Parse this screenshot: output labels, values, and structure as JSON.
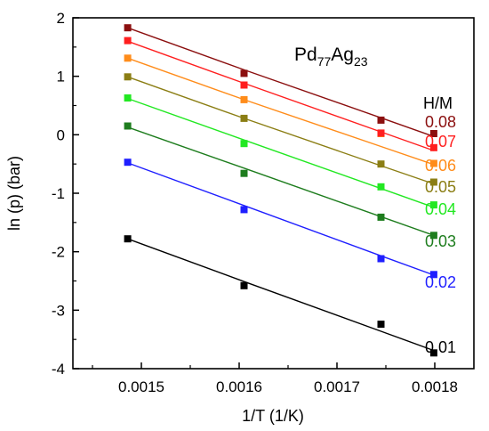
{
  "chart_data": {
    "type": "scatter",
    "title": "",
    "annotation": {
      "base": "Pd",
      "sub1": "77",
      "mid": "Ag",
      "sub2": "23"
    },
    "xlabel": "1/T (1/K)",
    "ylabel": "ln (p) (bar)",
    "xlim": [
      0.00143,
      0.00184
    ],
    "ylim": [
      -4,
      2
    ],
    "xticks": [
      0.0015,
      0.0016,
      0.0017,
      0.0018
    ],
    "xtick_labels": [
      "0.0015",
      "0.0016",
      "0.0017",
      "0.0018"
    ],
    "yticks": [
      -4,
      -3,
      -2,
      -1,
      0,
      1,
      2
    ],
    "ytick_labels": [
      "-4",
      "-3",
      "-2",
      "-1",
      "0",
      "1",
      "2"
    ],
    "grid": false,
    "legend_title": "H/M",
    "x": [
      0.001486,
      0.001605,
      0.001745,
      0.001799
    ],
    "series": [
      {
        "name": "0.01",
        "color": "#000000",
        "values": [
          -1.78,
          -2.58,
          -3.24,
          -3.73
        ],
        "fit": [
          -1.78,
          -2.51,
          -3.36,
          -3.69
        ]
      },
      {
        "name": "0.02",
        "color": "#1f1fff",
        "values": [
          -0.47,
          -1.28,
          -2.12,
          -2.39
        ],
        "fit": [
          -0.48,
          -1.21,
          -2.07,
          -2.4
        ]
      },
      {
        "name": "0.03",
        "color": "#1e7d1e",
        "values": [
          0.15,
          -0.66,
          -1.41,
          -1.72
        ],
        "fit": [
          0.13,
          -0.57,
          -1.4,
          -1.72
        ]
      },
      {
        "name": "0.04",
        "color": "#22e822",
        "values": [
          0.63,
          -0.15,
          -0.89,
          -1.2
        ],
        "fit": [
          0.62,
          -0.09,
          -0.92,
          -1.24
        ]
      },
      {
        "name": "0.05",
        "color": "#8b7e14",
        "values": [
          0.99,
          0.28,
          -0.5,
          -0.81
        ],
        "fit": [
          0.99,
          0.28,
          -0.53,
          -0.84
        ]
      },
      {
        "name": "0.06",
        "color": "#ff8c1a",
        "values": [
          1.31,
          0.6,
          0.02,
          -0.49
        ],
        "fit": [
          1.31,
          0.6,
          -0.2,
          -0.51
        ]
      },
      {
        "name": "0.07",
        "color": "#ff1f1f",
        "values": [
          1.61,
          0.85,
          0.03,
          -0.22
        ],
        "fit": [
          1.6,
          0.88,
          0.05,
          -0.27
        ]
      },
      {
        "name": "0.08",
        "color": "#8b0f0f",
        "values": [
          1.83,
          1.05,
          0.25,
          0.02
        ],
        "fit": [
          1.83,
          1.11,
          0.29,
          -0.03
        ]
      }
    ]
  }
}
